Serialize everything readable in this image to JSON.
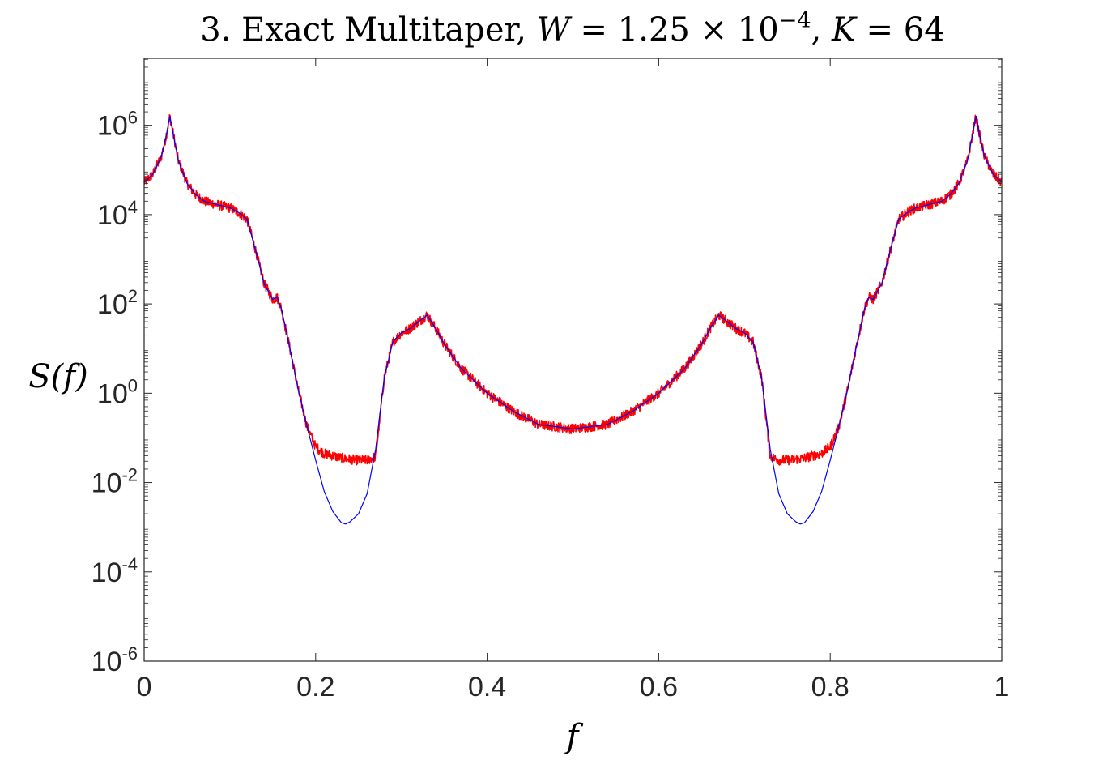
{
  "chart_data": {
    "type": "line",
    "title": {
      "prefix": "3. Exact Multitaper, ",
      "w_symbol": "W",
      "w_value": " = 1.25 × 10",
      "w_exponent": "−4",
      "separator": ", ",
      "k_symbol": "K",
      "k_value": " = 64"
    },
    "xlabel": "f",
    "ylabel": "S(f)",
    "xlim": [
      0,
      1
    ],
    "ylim_log10": [
      -6,
      7.5
    ],
    "yscale": "log",
    "grid": false,
    "legend": "none",
    "x_ticks": [
      "0",
      "0.2",
      "0.4",
      "0.6",
      "0.8",
      "1"
    ],
    "y_ticks": [
      {
        "base": "10",
        "exp": "-6",
        "log10": -6
      },
      {
        "base": "10",
        "exp": "-4",
        "log10": -4
      },
      {
        "base": "10",
        "exp": "-2",
        "log10": -2
      },
      {
        "base": "10",
        "exp": "0",
        "log10": 0
      },
      {
        "base": "10",
        "exp": "2",
        "log10": 2
      },
      {
        "base": "10",
        "exp": "4",
        "log10": 4
      },
      {
        "base": "10",
        "exp": "6",
        "log10": 6
      }
    ],
    "series": [
      {
        "role": "true-spectrum",
        "color": "#0000ff",
        "symmetric_about": 0.5,
        "x": [
          0,
          0.01,
          0.02,
          0.025,
          0.03,
          0.035,
          0.04,
          0.05,
          0.06,
          0.07,
          0.08,
          0.09,
          0.1,
          0.11,
          0.12,
          0.13,
          0.14,
          0.15,
          0.155,
          0.16,
          0.17,
          0.18,
          0.19,
          0.2,
          0.21,
          0.22,
          0.23,
          0.235,
          0.24,
          0.25,
          0.26,
          0.27,
          0.28,
          0.29,
          0.3,
          0.31,
          0.32,
          0.33,
          0.34,
          0.35,
          0.37,
          0.4,
          0.43,
          0.46,
          0.5
        ],
        "log10": [
          4.72,
          4.9,
          5.3,
          5.7,
          6.2,
          5.7,
          5.2,
          4.7,
          4.45,
          4.3,
          4.25,
          4.2,
          4.15,
          4.05,
          3.9,
          3.2,
          2.45,
          2.1,
          2.15,
          1.9,
          1.0,
          0.05,
          -0.75,
          -1.5,
          -2.2,
          -2.65,
          -2.9,
          -2.93,
          -2.88,
          -2.7,
          -2.25,
          -1.25,
          0.35,
          1.15,
          1.35,
          1.45,
          1.6,
          1.75,
          1.45,
          1.1,
          0.55,
          0.0,
          -0.4,
          -0.7,
          -0.8
        ]
      },
      {
        "role": "multitaper-estimate",
        "color": "#ff0000",
        "symmetric_about": 0.5,
        "x": [
          0,
          0.01,
          0.02,
          0.025,
          0.03,
          0.035,
          0.04,
          0.05,
          0.06,
          0.07,
          0.08,
          0.09,
          0.1,
          0.11,
          0.12,
          0.13,
          0.14,
          0.15,
          0.155,
          0.16,
          0.17,
          0.18,
          0.19,
          0.2,
          0.21,
          0.22,
          0.23,
          0.24,
          0.25,
          0.26,
          0.27,
          0.28,
          0.29,
          0.3,
          0.31,
          0.32,
          0.33,
          0.34,
          0.35,
          0.37,
          0.4,
          0.43,
          0.46,
          0.5
        ],
        "log10": [
          4.72,
          4.9,
          5.3,
          5.7,
          6.2,
          5.7,
          5.2,
          4.7,
          4.45,
          4.3,
          4.25,
          4.2,
          4.15,
          4.05,
          3.9,
          3.2,
          2.45,
          2.1,
          2.15,
          1.9,
          1.0,
          0.05,
          -0.75,
          -1.2,
          -1.35,
          -1.4,
          -1.45,
          -1.48,
          -1.5,
          -1.5,
          -1.42,
          0.35,
          1.15,
          1.35,
          1.45,
          1.6,
          1.75,
          1.45,
          1.1,
          0.55,
          0.0,
          -0.4,
          -0.7,
          -0.8
        ]
      }
    ]
  }
}
